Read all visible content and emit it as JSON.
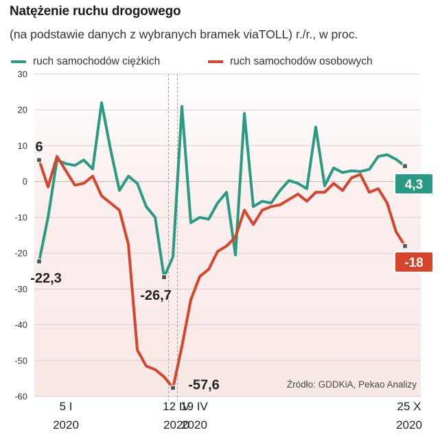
{
  "header": {
    "title": "Natężenie ruchu drogowego",
    "subtitle": "(na podstawie danych z wybranych bramek viaTOLL) r./r., w proc."
  },
  "colors": {
    "heavy": "#2a9a82",
    "passenger": "#d5452c",
    "background": "#f8e8e6"
  },
  "chart_data": {
    "type": "line",
    "title": "Natężenie ruchu drogowego",
    "subtitle": "(na podstawie danych z wybranych bramek viaTOLL) r./r., w proc.",
    "ylim": [
      -60,
      30
    ],
    "yticks": [
      30,
      20,
      10,
      0,
      -10,
      -20,
      -30,
      -40,
      -50,
      -60
    ],
    "week_count": 43,
    "xlabels": [
      {
        "index": 3,
        "line1": "5 I",
        "line2": "2020"
      },
      {
        "index": 16,
        "line1": "12 IV",
        "line2": "2020"
      },
      {
        "index": 17,
        "line1": "19 IV",
        "line2": "2020"
      },
      {
        "index": 41,
        "line1": "25 X",
        "line2": "2020"
      }
    ],
    "series": [
      {
        "name": "ruch samochodów ciężkich",
        "color": "#2a9a82",
        "values": [
          -22.3,
          -10,
          6,
          5,
          4.5,
          6,
          3.5,
          22,
          9,
          -2.5,
          1.5,
          -0.5,
          -7,
          -10,
          -26.7,
          -21,
          21,
          -11.5,
          -10,
          -10.5,
          -6,
          -3,
          -20.5,
          19,
          -7,
          -5.5,
          -6,
          -2.5,
          0.3,
          -0.5,
          -2,
          15.2,
          -1.2,
          3.8,
          2.5,
          3,
          2.8,
          3.4,
          7,
          7.5,
          6.2,
          4.3
        ]
      },
      {
        "name": "ruch samochodów osobowych",
        "color": "#d5452c",
        "values": [
          6,
          -1.5,
          7,
          3,
          -1,
          -0.5,
          1.5,
          -4,
          -6,
          -8,
          -17.5,
          -47,
          -51.5,
          -52.5,
          -54.5,
          -57.6,
          -46,
          -33,
          -26.5,
          -24.5,
          -19.5,
          -18,
          -15.5,
          -8,
          -12,
          -8,
          -7,
          -6.5,
          -5,
          -3.5,
          -5.5,
          -3,
          -3,
          -0.5,
          -2.5,
          1,
          2,
          -3,
          -2,
          -6,
          -14,
          -18
        ]
      }
    ],
    "annotations": [
      {
        "text": "6",
        "series": 1,
        "index": 0
      },
      {
        "text": "-22,3",
        "series": 0,
        "index": 0
      },
      {
        "text": "-26,7",
        "series": 0,
        "index": 14
      },
      {
        "text": "-57,6",
        "series": 1,
        "index": 15
      }
    ],
    "end_badges": [
      {
        "text": "4,3",
        "series": 0
      },
      {
        "text": "-18",
        "series": 1
      }
    ],
    "source": "Źródło: GDDKiA, Pekao Analizy"
  }
}
